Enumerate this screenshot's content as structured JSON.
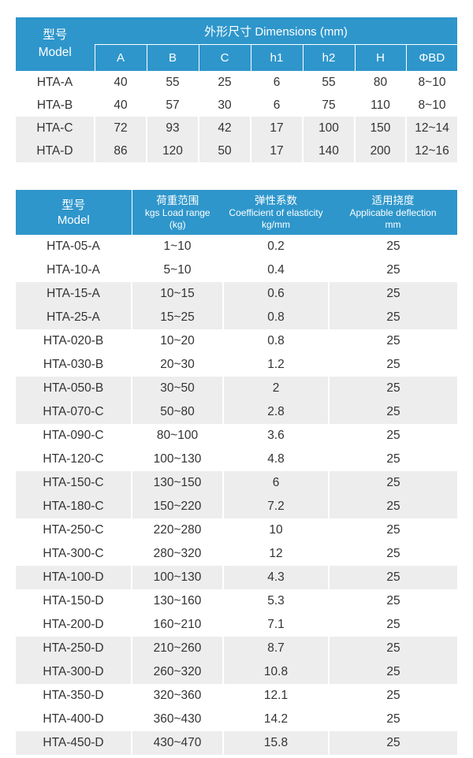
{
  "colors": {
    "header_blue": "#2e96cb",
    "header_divider": "rgba(255,255,255,0.3)",
    "shaded_row": "#ededed",
    "body_text": "#333333",
    "header_text": "#ffffff"
  },
  "table1": {
    "header": {
      "model_zh": "型号",
      "model_en": "Model",
      "dimensions_title": "外形尺寸 Dimensions (mm)",
      "columns": [
        "A",
        "B",
        "C",
        "h1",
        "h2",
        "H",
        "ΦBD"
      ]
    },
    "rows": [
      {
        "model": "HTA-A",
        "values": [
          "40",
          "55",
          "25",
          "6",
          "55",
          "80",
          "8~10"
        ],
        "shaded": false
      },
      {
        "model": "HTA-B",
        "values": [
          "40",
          "57",
          "30",
          "6",
          "75",
          "110",
          "8~10"
        ],
        "shaded": false
      },
      {
        "model": "HTA-C",
        "values": [
          "72",
          "93",
          "42",
          "17",
          "100",
          "150",
          "12~14"
        ],
        "shaded": true
      },
      {
        "model": "HTA-D",
        "values": [
          "86",
          "120",
          "50",
          "17",
          "140",
          "200",
          "12~16"
        ],
        "shaded": true
      }
    ]
  },
  "table2": {
    "header": {
      "model_zh": "型号",
      "model_en": "Model",
      "load_zh": "荷重范围",
      "load_en": "kgs Load range",
      "load_unit": "(kg)",
      "coef_zh": "弹性系数",
      "coef_en": "Coefficient of elasticity",
      "coef_unit": "kg/mm",
      "defl_zh": "适用挠度",
      "defl_en": "Applicable deflection",
      "defl_unit": "mm"
    },
    "rows": [
      {
        "model": "HTA-05-A",
        "load": "1~10",
        "coefficient": "0.2",
        "deflection": "25",
        "shaded": false
      },
      {
        "model": "HTA-10-A",
        "load": "5~10",
        "coefficient": "0.4",
        "deflection": "25",
        "shaded": false
      },
      {
        "model": "HTA-15-A",
        "load": "10~15",
        "coefficient": "0.6",
        "deflection": "25",
        "shaded": true
      },
      {
        "model": "HTA-25-A",
        "load": "15~25",
        "coefficient": "0.8",
        "deflection": "25",
        "shaded": true
      },
      {
        "model": "HTA-020-B",
        "load": "10~20",
        "coefficient": "0.8",
        "deflection": "25",
        "shaded": false
      },
      {
        "model": "HTA-030-B",
        "load": "20~30",
        "coefficient": "1.2",
        "deflection": "25",
        "shaded": false
      },
      {
        "model": "HTA-050-B",
        "load": "30~50",
        "coefficient": "2",
        "deflection": "25",
        "shaded": true
      },
      {
        "model": "HTA-070-C",
        "load": "50~80",
        "coefficient": "2.8",
        "deflection": "25",
        "shaded": true
      },
      {
        "model": "HTA-090-C",
        "load": "80~100",
        "coefficient": "3.6",
        "deflection": "25",
        "shaded": false
      },
      {
        "model": "HTA-120-C",
        "load": "100~130",
        "coefficient": "4.8",
        "deflection": "25",
        "shaded": false
      },
      {
        "model": "HTA-150-C",
        "load": "130~150",
        "coefficient": "6",
        "deflection": "25",
        "shaded": true
      },
      {
        "model": "HTA-180-C",
        "load": "150~220",
        "coefficient": "7.2",
        "deflection": "25",
        "shaded": true
      },
      {
        "model": "HTA-250-C",
        "load": "220~280",
        "coefficient": "10",
        "deflection": "25",
        "shaded": false
      },
      {
        "model": "HTA-300-C",
        "load": "280~320",
        "coefficient": "12",
        "deflection": "25",
        "shaded": false
      },
      {
        "model": "HTA-100-D",
        "load": "100~130",
        "coefficient": "4.3",
        "deflection": "25",
        "shaded": true
      },
      {
        "model": "HTA-150-D",
        "load": "130~160",
        "coefficient": "5.3",
        "deflection": "25",
        "shaded": false
      },
      {
        "model": "HTA-200-D",
        "load": "160~210",
        "coefficient": "7.1",
        "deflection": "25",
        "shaded": false
      },
      {
        "model": "HTA-250-D",
        "load": "210~260",
        "coefficient": "8.7",
        "deflection": "25",
        "shaded": true
      },
      {
        "model": "HTA-300-D",
        "load": "260~320",
        "coefficient": "10.8",
        "deflection": "25",
        "shaded": true
      },
      {
        "model": "HTA-350-D",
        "load": "320~360",
        "coefficient": "12.1",
        "deflection": "25",
        "shaded": false
      },
      {
        "model": "HTA-400-D",
        "load": "360~430",
        "coefficient": "14.2",
        "deflection": "25",
        "shaded": false
      },
      {
        "model": "HTA-450-D",
        "load": "430~470",
        "coefficient": "15.8",
        "deflection": "25",
        "shaded": true
      }
    ]
  }
}
